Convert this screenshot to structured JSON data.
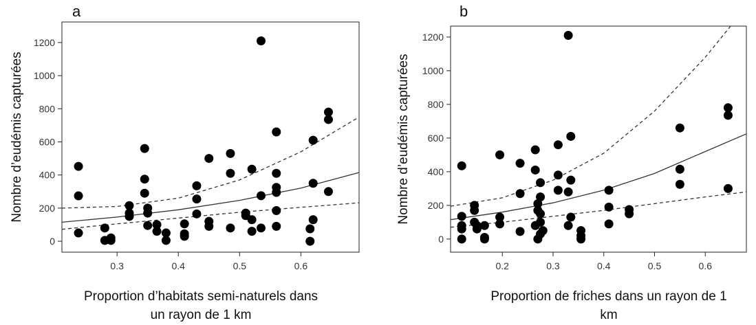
{
  "chart_data": [
    {
      "type": "scatter",
      "label": "a",
      "ylabel": "Nombre d’eudémis capturées",
      "xlabel": [
        "Proportion d’habitats semi-naturels dans",
        "un rayon de 1 km"
      ],
      "xlim": [
        0.21,
        0.695
      ],
      "ylim": [
        -66,
        1324
      ],
      "xticks": [
        0.3,
        0.4,
        0.5,
        0.6
      ],
      "yticks": [
        0,
        200,
        400,
        600,
        800,
        1000,
        1200
      ],
      "series": [
        {
          "style": "points",
          "color": "#000000",
          "x": [
            0.237,
            0.237,
            0.237,
            0.28,
            0.28,
            0.29,
            0.29,
            0.32,
            0.32,
            0.32,
            0.345,
            0.345,
            0.345,
            0.35,
            0.35,
            0.35,
            0.365,
            0.365,
            0.38,
            0.38,
            0.41,
            0.41,
            0.41,
            0.43,
            0.43,
            0.43,
            0.45,
            0.45,
            0.45,
            0.485,
            0.485,
            0.485,
            0.51,
            0.51,
            0.52,
            0.52,
            0.52,
            0.535,
            0.535,
            0.535,
            0.56,
            0.56,
            0.56,
            0.56,
            0.56,
            0.56,
            0.615,
            0.615,
            0.62,
            0.62,
            0.62,
            0.645,
            0.645,
            0.645
          ],
          "values": [
            452,
            274,
            50,
            80,
            5,
            20,
            5,
            215,
            170,
            150,
            560,
            375,
            290,
            200,
            170,
            95,
            100,
            60,
            50,
            5,
            105,
            45,
            30,
            335,
            255,
            165,
            500,
            120,
            90,
            530,
            410,
            80,
            170,
            155,
            435,
            130,
            60,
            1210,
            275,
            80,
            660,
            410,
            325,
            295,
            185,
            90,
            75,
            0,
            610,
            350,
            130,
            780,
            735,
            300
          ]
        },
        {
          "style": "solid",
          "color": "#333333",
          "x": [
            0.21,
            0.3,
            0.4,
            0.5,
            0.6,
            0.695
          ],
          "values": [
            115,
            146,
            190,
            247,
            321,
            415
          ]
        },
        {
          "style": "dashed",
          "color": "#333333",
          "x": [
            0.21,
            0.3,
            0.4,
            0.5,
            0.6,
            0.695
          ],
          "values": [
            200,
            210,
            260,
            370,
            540,
            750
          ]
        },
        {
          "style": "dashed",
          "color": "#333333",
          "x": [
            0.21,
            0.3,
            0.4,
            0.5,
            0.6,
            0.695
          ],
          "values": [
            72,
            105,
            140,
            175,
            205,
            232
          ]
        }
      ]
    },
    {
      "type": "scatter",
      "label": "b",
      "ylabel": "Nombre d’eudémis capturées",
      "xlabel": [
        "Proportion de friches dans un rayon de 1",
        "km"
      ],
      "xlim": [
        0.098,
        0.681
      ],
      "ylim": [
        -78,
        1265
      ],
      "xticks": [
        0.2,
        0.3,
        0.4,
        0.5,
        0.6
      ],
      "yticks": [
        0,
        200,
        400,
        600,
        800,
        1000,
        1200
      ],
      "series": [
        {
          "style": "points",
          "color": "#000000",
          "x": [
            0.12,
            0.12,
            0.12,
            0.12,
            0.12,
            0.145,
            0.145,
            0.145,
            0.15,
            0.15,
            0.165,
            0.165,
            0.165,
            0.195,
            0.195,
            0.195,
            0.235,
            0.235,
            0.235,
            0.265,
            0.265,
            0.265,
            0.275,
            0.275,
            0.27,
            0.27,
            0.275,
            0.275,
            0.28,
            0.275,
            0.27,
            0.31,
            0.31,
            0.31,
            0.33,
            0.33,
            0.33,
            0.335,
            0.335,
            0.335,
            0.355,
            0.355,
            0.355,
            0.41,
            0.41,
            0.41,
            0.45,
            0.45,
            0.55,
            0.55,
            0.55,
            0.645,
            0.645,
            0.645
          ],
          "values": [
            435,
            135,
            80,
            60,
            0,
            200,
            170,
            100,
            80,
            60,
            80,
            10,
            0,
            500,
            130,
            90,
            450,
            270,
            45,
            530,
            410,
            80,
            335,
            250,
            210,
            170,
            150,
            100,
            50,
            30,
            0,
            560,
            380,
            290,
            1210,
            280,
            80,
            610,
            350,
            130,
            50,
            20,
            0,
            290,
            190,
            90,
            175,
            150,
            660,
            415,
            325,
            780,
            735,
            300
          ]
        },
        {
          "style": "solid",
          "color": "#333333",
          "x": [
            0.098,
            0.2,
            0.3,
            0.4,
            0.5,
            0.6,
            0.681
          ],
          "values": [
            115,
            160,
            215,
            290,
            390,
            520,
            625
          ]
        },
        {
          "style": "dashed",
          "color": "#333333",
          "x": [
            0.098,
            0.2,
            0.3,
            0.4,
            0.5,
            0.6,
            0.65
          ],
          "values": [
            195,
            245,
            350,
            510,
            760,
            1080,
            1265
          ]
        },
        {
          "style": "dashed",
          "color": "#333333",
          "x": [
            0.098,
            0.2,
            0.3,
            0.4,
            0.5,
            0.6,
            0.681
          ],
          "values": [
            70,
            100,
            135,
            170,
            210,
            250,
            280
          ]
        }
      ]
    }
  ]
}
